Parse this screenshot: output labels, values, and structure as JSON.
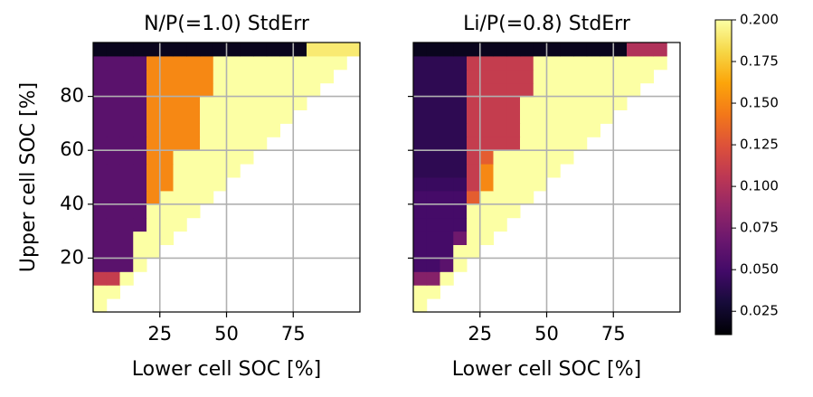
{
  "chart_data": [
    {
      "type": "heatmap",
      "title": "N/P(=1.0) StdErr",
      "xlabel": "Lower cell SOC [%]",
      "ylabel": "Upper cell SOC [%]",
      "xlim": [
        0,
        100
      ],
      "ylim": [
        0,
        100
      ],
      "xticks": [
        25,
        50,
        75
      ],
      "yticks": [
        20,
        40,
        60,
        80
      ],
      "show_ytick_labels": true,
      "grid": true,
      "x_edges": [
        0,
        5,
        10,
        15,
        20,
        25,
        30,
        35,
        40,
        45,
        50,
        55,
        60,
        65,
        70,
        75,
        80,
        85,
        90,
        95,
        100
      ],
      "y_edges": [
        0,
        5,
        10,
        15,
        20,
        25,
        30,
        35,
        40,
        45,
        50,
        55,
        60,
        65,
        70,
        75,
        80,
        85,
        90,
        95,
        100
      ],
      "values": [
        [
          0.2,
          null,
          null,
          null,
          null,
          null,
          null,
          null,
          null,
          null,
          null,
          null,
          null,
          null,
          null,
          null,
          null,
          null,
          null,
          null
        ],
        [
          0.2,
          0.2,
          null,
          null,
          null,
          null,
          null,
          null,
          null,
          null,
          null,
          null,
          null,
          null,
          null,
          null,
          null,
          null,
          null,
          null
        ],
        [
          0.11,
          0.11,
          0.2,
          null,
          null,
          null,
          null,
          null,
          null,
          null,
          null,
          null,
          null,
          null,
          null,
          null,
          null,
          null,
          null,
          null
        ],
        [
          0.06,
          0.06,
          0.06,
          0.2,
          null,
          null,
          null,
          null,
          null,
          null,
          null,
          null,
          null,
          null,
          null,
          null,
          null,
          null,
          null,
          null
        ],
        [
          0.06,
          0.06,
          0.06,
          0.2,
          0.2,
          null,
          null,
          null,
          null,
          null,
          null,
          null,
          null,
          null,
          null,
          null,
          null,
          null,
          null,
          null
        ],
        [
          0.06,
          0.06,
          0.06,
          0.2,
          0.2,
          0.2,
          null,
          null,
          null,
          null,
          null,
          null,
          null,
          null,
          null,
          null,
          null,
          null,
          null,
          null
        ],
        [
          0.06,
          0.06,
          0.06,
          0.06,
          0.2,
          0.2,
          0.2,
          null,
          null,
          null,
          null,
          null,
          null,
          null,
          null,
          null,
          null,
          null,
          null,
          null
        ],
        [
          0.06,
          0.06,
          0.06,
          0.06,
          0.2,
          0.2,
          0.2,
          0.2,
          null,
          null,
          null,
          null,
          null,
          null,
          null,
          null,
          null,
          null,
          null,
          null
        ],
        [
          0.06,
          0.06,
          0.06,
          0.06,
          0.15,
          0.2,
          0.2,
          0.2,
          0.2,
          null,
          null,
          null,
          null,
          null,
          null,
          null,
          null,
          null,
          null,
          null
        ],
        [
          0.06,
          0.06,
          0.06,
          0.06,
          0.15,
          0.15,
          0.2,
          0.2,
          0.2,
          0.2,
          null,
          null,
          null,
          null,
          null,
          null,
          null,
          null,
          null,
          null
        ],
        [
          0.06,
          0.06,
          0.06,
          0.06,
          0.15,
          0.15,
          0.2,
          0.2,
          0.2,
          0.2,
          0.2,
          null,
          null,
          null,
          null,
          null,
          null,
          null,
          null,
          null
        ],
        [
          0.06,
          0.06,
          0.06,
          0.06,
          0.15,
          0.15,
          0.2,
          0.2,
          0.2,
          0.2,
          0.2,
          0.2,
          null,
          null,
          null,
          null,
          null,
          null,
          null,
          null
        ],
        [
          0.06,
          0.06,
          0.06,
          0.06,
          0.15,
          0.15,
          0.15,
          0.15,
          0.2,
          0.2,
          0.2,
          0.2,
          0.2,
          null,
          null,
          null,
          null,
          null,
          null,
          null
        ],
        [
          0.06,
          0.06,
          0.06,
          0.06,
          0.15,
          0.15,
          0.15,
          0.15,
          0.2,
          0.2,
          0.2,
          0.2,
          0.2,
          0.2,
          null,
          null,
          null,
          null,
          null,
          null
        ],
        [
          0.06,
          0.06,
          0.06,
          0.06,
          0.15,
          0.15,
          0.15,
          0.15,
          0.2,
          0.2,
          0.2,
          0.2,
          0.2,
          0.2,
          0.2,
          null,
          null,
          null,
          null,
          null
        ],
        [
          0.06,
          0.06,
          0.06,
          0.06,
          0.15,
          0.15,
          0.15,
          0.15,
          0.2,
          0.2,
          0.2,
          0.2,
          0.2,
          0.2,
          0.2,
          0.2,
          null,
          null,
          null,
          null
        ],
        [
          0.06,
          0.06,
          0.06,
          0.06,
          0.15,
          0.15,
          0.15,
          0.15,
          0.15,
          0.2,
          0.2,
          0.2,
          0.2,
          0.2,
          0.2,
          0.2,
          0.2,
          null,
          null,
          null
        ],
        [
          0.06,
          0.06,
          0.06,
          0.06,
          0.15,
          0.15,
          0.15,
          0.15,
          0.15,
          0.2,
          0.2,
          0.2,
          0.2,
          0.2,
          0.2,
          0.2,
          0.2,
          0.2,
          null,
          null
        ],
        [
          0.06,
          0.06,
          0.06,
          0.06,
          0.15,
          0.15,
          0.15,
          0.15,
          0.15,
          0.2,
          0.2,
          0.2,
          0.2,
          0.2,
          0.2,
          0.2,
          0.2,
          0.2,
          0.2,
          null
        ],
        [
          0.02,
          0.02,
          0.02,
          0.02,
          0.02,
          0.02,
          0.02,
          0.02,
          0.02,
          0.02,
          0.02,
          0.02,
          0.02,
          0.02,
          0.02,
          0.02,
          0.19,
          0.19,
          0.19,
          0.19
        ]
      ]
    },
    {
      "type": "heatmap",
      "title": "Li/P(=0.8) StdErr",
      "xlabel": "Lower cell SOC [%]",
      "xlim": [
        0,
        100
      ],
      "ylim": [
        0,
        100
      ],
      "xticks": [
        25,
        50,
        75
      ],
      "yticks": [
        20,
        40,
        60,
        80
      ],
      "show_ytick_labels": false,
      "grid": true,
      "x_edges": [
        0,
        5,
        10,
        15,
        20,
        25,
        30,
        35,
        40,
        45,
        50,
        55,
        60,
        65,
        70,
        75,
        80,
        85,
        90,
        95,
        100
      ],
      "y_edges": [
        0,
        5,
        10,
        15,
        20,
        25,
        30,
        35,
        40,
        45,
        50,
        55,
        60,
        65,
        70,
        75,
        80,
        85,
        90,
        95,
        100
      ],
      "values": [
        [
          0.2,
          null,
          null,
          null,
          null,
          null,
          null,
          null,
          null,
          null,
          null,
          null,
          null,
          null,
          null,
          null,
          null,
          null,
          null,
          null
        ],
        [
          0.2,
          0.2,
          null,
          null,
          null,
          null,
          null,
          null,
          null,
          null,
          null,
          null,
          null,
          null,
          null,
          null,
          null,
          null,
          null,
          null
        ],
        [
          0.08,
          0.08,
          0.2,
          null,
          null,
          null,
          null,
          null,
          null,
          null,
          null,
          null,
          null,
          null,
          null,
          null,
          null,
          null,
          null,
          null
        ],
        [
          0.05,
          0.05,
          0.06,
          0.2,
          null,
          null,
          null,
          null,
          null,
          null,
          null,
          null,
          null,
          null,
          null,
          null,
          null,
          null,
          null,
          null
        ],
        [
          0.05,
          0.05,
          0.05,
          0.2,
          0.2,
          null,
          null,
          null,
          null,
          null,
          null,
          null,
          null,
          null,
          null,
          null,
          null,
          null,
          null,
          null
        ],
        [
          0.05,
          0.05,
          0.05,
          0.07,
          0.2,
          0.2,
          null,
          null,
          null,
          null,
          null,
          null,
          null,
          null,
          null,
          null,
          null,
          null,
          null,
          null
        ],
        [
          0.05,
          0.05,
          0.05,
          0.05,
          0.2,
          0.2,
          0.2,
          null,
          null,
          null,
          null,
          null,
          null,
          null,
          null,
          null,
          null,
          null,
          null,
          null
        ],
        [
          0.05,
          0.05,
          0.05,
          0.05,
          0.2,
          0.2,
          0.2,
          0.2,
          null,
          null,
          null,
          null,
          null,
          null,
          null,
          null,
          null,
          null,
          null,
          null
        ],
        [
          0.05,
          0.05,
          0.05,
          0.05,
          0.13,
          0.2,
          0.2,
          0.2,
          0.2,
          null,
          null,
          null,
          null,
          null,
          null,
          null,
          null,
          null,
          null,
          null
        ],
        [
          0.045,
          0.045,
          0.045,
          0.045,
          0.11,
          0.15,
          0.2,
          0.2,
          0.2,
          0.2,
          null,
          null,
          null,
          null,
          null,
          null,
          null,
          null,
          null,
          null
        ],
        [
          0.04,
          0.04,
          0.04,
          0.04,
          0.11,
          0.15,
          0.2,
          0.2,
          0.2,
          0.2,
          0.2,
          null,
          null,
          null,
          null,
          null,
          null,
          null,
          null,
          null
        ],
        [
          0.04,
          0.04,
          0.04,
          0.04,
          0.11,
          0.13,
          0.2,
          0.2,
          0.2,
          0.2,
          0.2,
          0.2,
          null,
          null,
          null,
          null,
          null,
          null,
          null,
          null
        ],
        [
          0.04,
          0.04,
          0.04,
          0.04,
          0.11,
          0.11,
          0.11,
          0.11,
          0.2,
          0.2,
          0.2,
          0.2,
          0.2,
          null,
          null,
          null,
          null,
          null,
          null,
          null
        ],
        [
          0.04,
          0.04,
          0.04,
          0.04,
          0.11,
          0.11,
          0.11,
          0.11,
          0.2,
          0.2,
          0.2,
          0.2,
          0.2,
          0.2,
          null,
          null,
          null,
          null,
          null,
          null
        ],
        [
          0.04,
          0.04,
          0.04,
          0.04,
          0.11,
          0.11,
          0.11,
          0.11,
          0.2,
          0.2,
          0.2,
          0.2,
          0.2,
          0.2,
          0.2,
          null,
          null,
          null,
          null,
          null
        ],
        [
          0.04,
          0.04,
          0.04,
          0.04,
          0.11,
          0.11,
          0.11,
          0.11,
          0.2,
          0.2,
          0.2,
          0.2,
          0.2,
          0.2,
          0.2,
          0.2,
          null,
          null,
          null,
          null
        ],
        [
          0.04,
          0.04,
          0.04,
          0.04,
          0.11,
          0.11,
          0.11,
          0.11,
          0.11,
          0.2,
          0.2,
          0.2,
          0.2,
          0.2,
          0.2,
          0.2,
          0.2,
          null,
          null,
          null
        ],
        [
          0.04,
          0.04,
          0.04,
          0.04,
          0.11,
          0.11,
          0.11,
          0.11,
          0.11,
          0.2,
          0.2,
          0.2,
          0.2,
          0.2,
          0.2,
          0.2,
          0.2,
          0.2,
          null,
          null
        ],
        [
          0.04,
          0.04,
          0.04,
          0.04,
          0.11,
          0.11,
          0.11,
          0.11,
          0.11,
          0.2,
          0.2,
          0.2,
          0.2,
          0.2,
          0.2,
          0.2,
          0.2,
          0.2,
          0.2,
          null
        ],
        [
          0.02,
          0.02,
          0.02,
          0.02,
          0.02,
          0.02,
          0.02,
          0.02,
          0.02,
          0.02,
          0.02,
          0.02,
          0.02,
          0.02,
          0.02,
          0.02,
          0.1,
          0.1,
          0.1,
          null
        ]
      ]
    }
  ],
  "colorbar": {
    "colormap": "inferno",
    "clim": [
      0.011,
      0.2
    ],
    "ticks": [
      0.025,
      {
        "value": 0.05,
        "label": "0.050"
      },
      0.075,
      {
        "value": 0.1,
        "label": "0.100"
      },
      0.125,
      {
        "value": 0.15,
        "label": "0.150"
      },
      0.175,
      {
        "value": 0.2,
        "label": "0.200"
      }
    ]
  }
}
